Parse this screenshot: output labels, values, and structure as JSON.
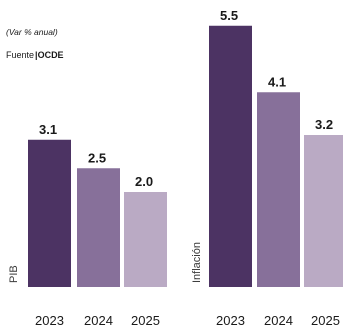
{
  "subtitle": "(Var % anual)",
  "source_prefix": "Fuente",
  "source_name": "OCDE",
  "colors": [
    "#4c3363",
    "#87709a",
    "#baaac4"
  ],
  "chart_data": [
    {
      "type": "bar",
      "axis_label": "PIB",
      "categories": [
        "2023",
        "2024",
        "2025"
      ],
      "values": [
        3.1,
        2.5,
        2.0
      ],
      "value_labels": [
        "3.1",
        "2.5",
        "2.0"
      ],
      "ylim": [
        0,
        5.5
      ]
    },
    {
      "type": "bar",
      "axis_label": "Inflación",
      "categories": [
        "2023",
        "2024",
        "2025"
      ],
      "values": [
        5.5,
        4.1,
        3.2
      ],
      "value_labels": [
        "5.5",
        "4.1",
        "3.2"
      ],
      "ylim": [
        0,
        5.5
      ]
    }
  ]
}
